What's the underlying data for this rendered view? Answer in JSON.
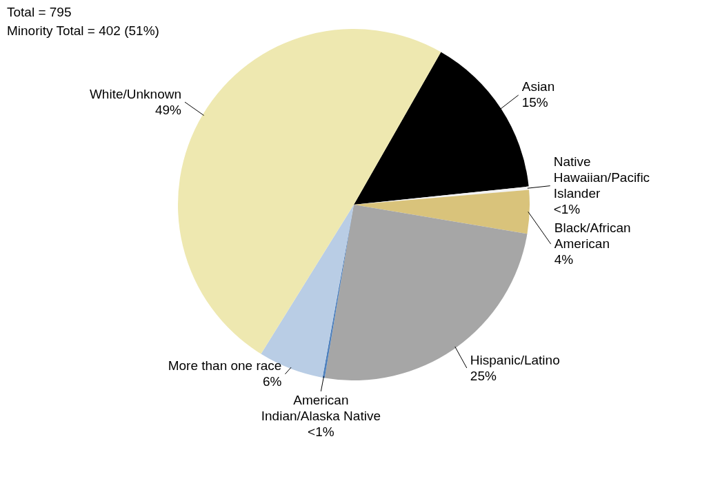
{
  "chart_data": {
    "type": "pie",
    "categories": [
      "Asian",
      "Native Hawaiian/Pacific Islander",
      "Black/African American",
      "Hispanic/Latino",
      "American Indian/Alaska Native",
      "More than one race",
      "White/Unknown"
    ],
    "values": [
      15.1,
      0.3,
      4.0,
      25.0,
      0.2,
      6.0,
      49.4
    ],
    "colors": [
      "#000000",
      "#f2f2f2",
      "#d9c37b",
      "#a6a6a6",
      "#4f81bd",
      "#b9cde5",
      "#eee8b0"
    ],
    "value_labels": [
      "15%",
      "<1%",
      "4%",
      "25%",
      "<1%",
      "6%",
      "49%"
    ],
    "annotations": [
      "Total = 795",
      "Minority Total = 402 (51%)"
    ]
  }
}
